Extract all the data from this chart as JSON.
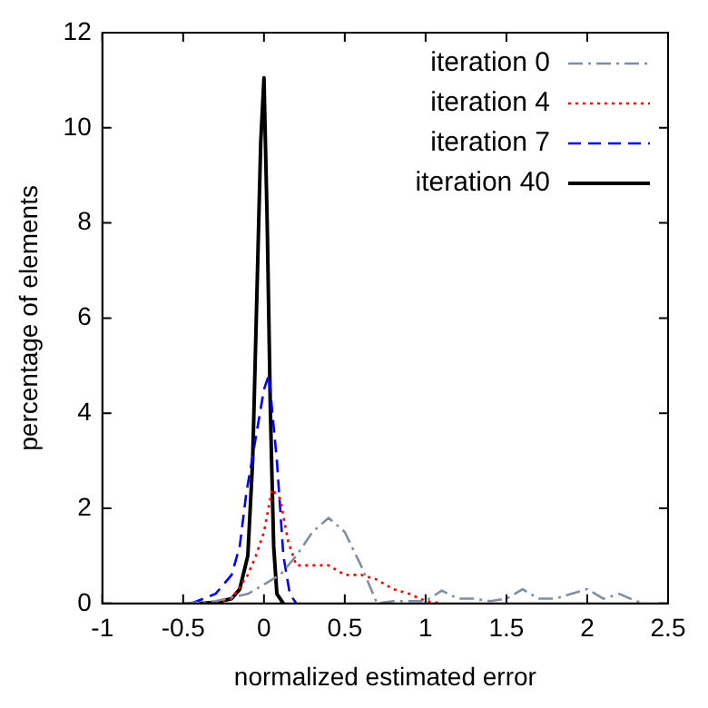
{
  "chart_data": {
    "type": "line",
    "xlabel": "normalized estimated error",
    "ylabel": "percentage of elements",
    "xlim": [
      -1,
      2.5
    ],
    "xticks": [
      -1,
      -0.5,
      0,
      0.5,
      1,
      1.5,
      2,
      2.5
    ],
    "ylim": [
      0,
      12
    ],
    "yticks": [
      0,
      2,
      4,
      6,
      8,
      10,
      12
    ],
    "grid": false,
    "legend": "top right",
    "marker": "none",
    "series": [
      {
        "name": "iteration 0",
        "color": "#7f8fa0",
        "line_style": "dashdot",
        "x": [
          -0.5,
          -0.3,
          -0.1,
          0,
          0.1,
          0.2,
          0.3,
          0.4,
          0.5,
          0.6,
          0.7,
          0.8,
          0.9,
          1.0,
          1.1,
          1.2,
          1.3,
          1.4,
          1.5,
          1.6,
          1.7,
          1.8,
          1.9,
          2.0,
          2.1,
          2.2,
          2.3,
          2.35
        ],
        "values": [
          0,
          0.05,
          0.2,
          0.4,
          0.6,
          1.0,
          1.5,
          1.8,
          1.5,
          0.8,
          0,
          0.05,
          0.05,
          0.05,
          0.27,
          0.1,
          0.1,
          0.05,
          0.1,
          0.3,
          0.1,
          0.1,
          0.2,
          0.3,
          0.1,
          0.2,
          0.05,
          0
        ]
      },
      {
        "name": "iteration 4",
        "color": "#ff0000",
        "line_style": "dotted",
        "x": [
          -0.3,
          -0.2,
          -0.1,
          -0.05,
          0,
          0.05,
          0.1,
          0.15,
          0.2,
          0.3,
          0.4,
          0.5,
          0.6,
          0.7,
          0.8,
          0.9,
          1.0,
          1.1
        ],
        "values": [
          0,
          0.1,
          0.6,
          1,
          1.5,
          2.4,
          2.2,
          1.3,
          0.8,
          0.8,
          0.8,
          0.6,
          0.6,
          0.5,
          0.3,
          0.2,
          0.05,
          0
        ]
      },
      {
        "name": "iteration 7",
        "color": "#0000ff",
        "line_style": "dashed",
        "x": [
          -0.45,
          -0.3,
          -0.2,
          -0.15,
          -0.11,
          -0.05,
          0,
          0.03,
          0.08,
          0.12,
          0.16,
          0.2
        ],
        "values": [
          0,
          0.2,
          0.6,
          1.2,
          2.3,
          3.5,
          4.5,
          4.8,
          3,
          1,
          0.2,
          0
        ]
      },
      {
        "name": "iteration 40",
        "color": "#000000",
        "line_style": "solid",
        "x": [
          -0.4,
          -0.3,
          -0.2,
          -0.15,
          -0.1,
          -0.07,
          -0.04,
          -0.02,
          0,
          0.02,
          0.04,
          0.06,
          0.08,
          0.12
        ],
        "values": [
          0,
          0.02,
          0.1,
          0.3,
          1,
          3,
          7,
          9.7,
          11.05,
          8,
          4,
          1.2,
          0.2,
          0
        ]
      }
    ]
  }
}
